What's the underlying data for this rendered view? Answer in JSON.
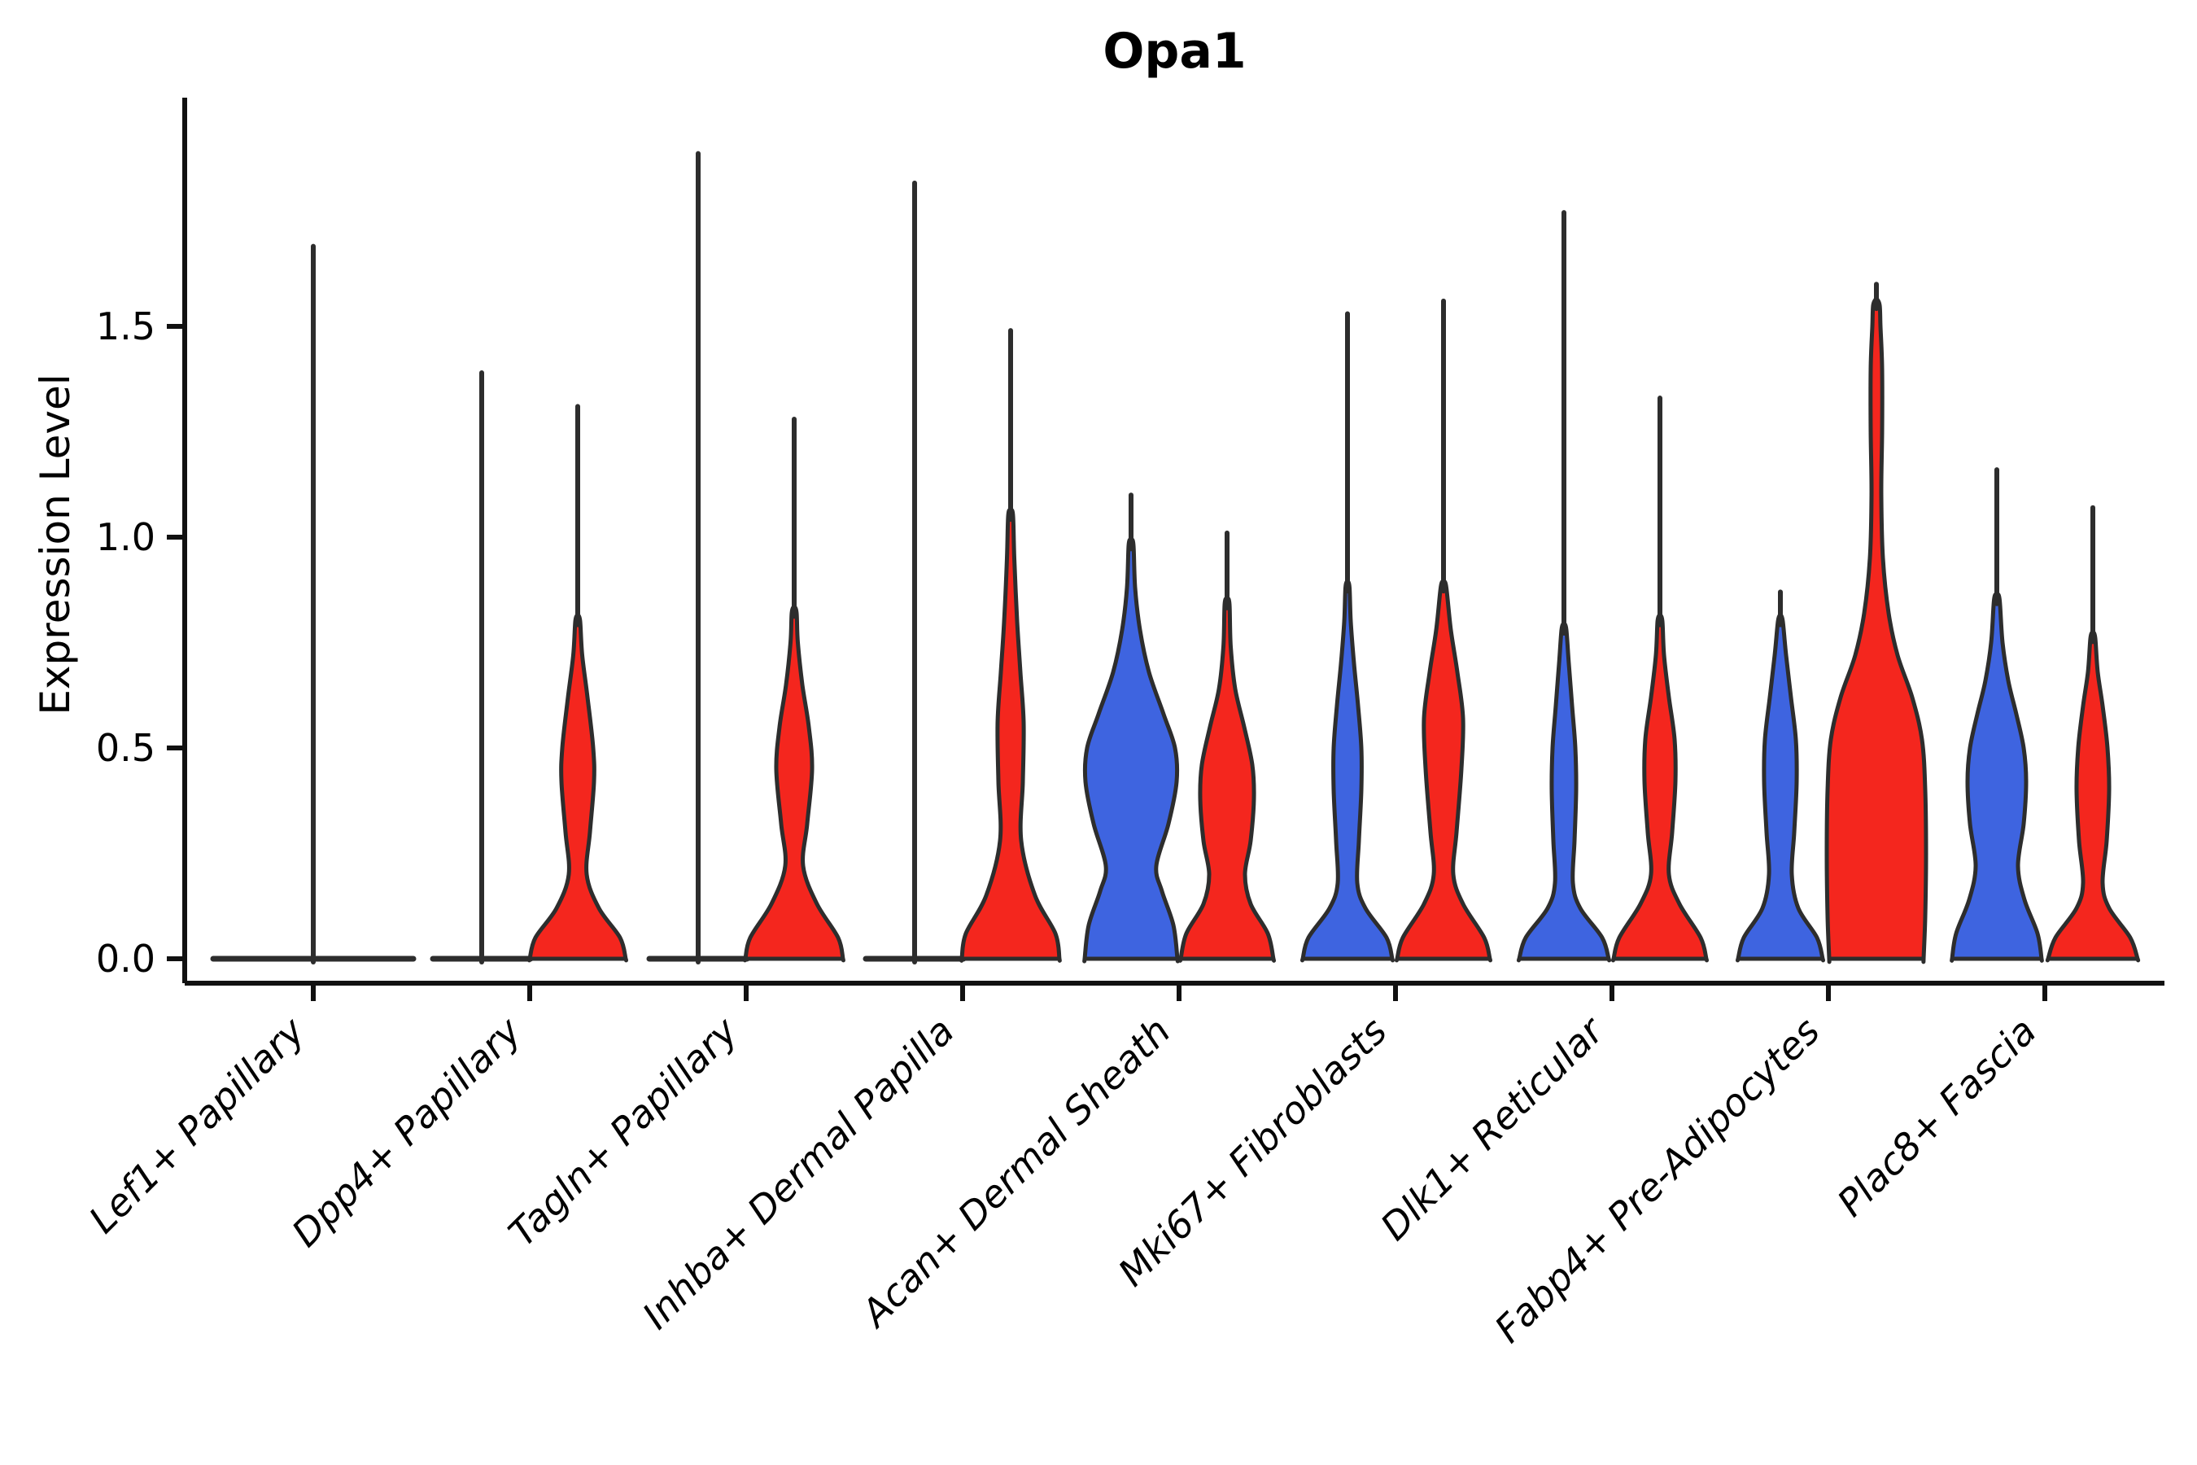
{
  "chart_data": {
    "type": "violin",
    "title": "Opa1",
    "ylabel": "Expression Level",
    "xlabel": "",
    "ytick_labels": [
      "0.0",
      "0.5",
      "1.0",
      "1.5"
    ],
    "ytick_values": [
      0.0,
      0.5,
      1.0,
      1.5
    ],
    "ylim": [
      -0.06,
      2.05
    ],
    "grid": false,
    "legend": "none",
    "series": [
      {
        "id": "left",
        "name": "group-blue",
        "color": "#3E64E0"
      },
      {
        "id": "right",
        "name": "group-red",
        "color": "#F4261E"
      },
      {
        "id": "center",
        "name": "group-single-flat",
        "color": "#3E64E0"
      }
    ],
    "outline_color": "#2D2D2D",
    "axis_color": "#111111",
    "categories": [
      "Lef1+ Papillary",
      "Dpp4+ Papillary",
      "Tagln+ Papillary",
      "Inhba+ Dermal Papilla",
      "Acan+ Dermal Sheath",
      "Mki67+ Fibroblasts",
      "Dlk1+ Reticular",
      "Fabp4+ Pre-Adipocytes",
      "Plac8+ Fascia"
    ],
    "violins": [
      {
        "category": 0,
        "side": "center",
        "flat": true,
        "half_width": 123,
        "line_max": 1.69,
        "profile": [
          [
            0,
            123
          ]
        ]
      },
      {
        "category": 1,
        "side": "left",
        "flat": true,
        "half_width": 60,
        "line_max": 1.39,
        "profile": [
          [
            0,
            60
          ]
        ]
      },
      {
        "category": 1,
        "side": "right",
        "flat": false,
        "line_max": 1.31,
        "profile": [
          [
            0,
            59
          ],
          [
            0.05,
            52
          ],
          [
            0.12,
            26
          ],
          [
            0.2,
            11
          ],
          [
            0.3,
            15
          ],
          [
            0.42,
            20
          ],
          [
            0.5,
            19
          ],
          [
            0.62,
            12
          ],
          [
            0.72,
            5.5
          ],
          [
            0.8,
            3
          ]
        ]
      },
      {
        "category": 2,
        "side": "left",
        "flat": true,
        "half_width": 60,
        "line_max": 1.91,
        "profile": [
          [
            0,
            60
          ]
        ]
      },
      {
        "category": 2,
        "side": "right",
        "flat": false,
        "line_max": 1.28,
        "profile": [
          [
            0,
            60
          ],
          [
            0.05,
            54
          ],
          [
            0.13,
            28
          ],
          [
            0.22,
            11
          ],
          [
            0.32,
            16
          ],
          [
            0.45,
            22
          ],
          [
            0.55,
            18
          ],
          [
            0.65,
            10
          ],
          [
            0.75,
            4.5
          ],
          [
            0.82,
            3
          ]
        ]
      },
      {
        "category": 3,
        "side": "left",
        "flat": true,
        "half_width": 60,
        "line_max": 1.84,
        "profile": [
          [
            0,
            60
          ]
        ]
      },
      {
        "category": 3,
        "side": "right",
        "flat": false,
        "line_max": 1.49,
        "profile": [
          [
            0,
            60
          ],
          [
            0.06,
            55
          ],
          [
            0.15,
            30
          ],
          [
            0.28,
            13
          ],
          [
            0.42,
            15
          ],
          [
            0.56,
            16
          ],
          [
            0.68,
            12
          ],
          [
            0.8,
            8
          ],
          [
            0.95,
            4.5
          ],
          [
            1.05,
            3
          ]
        ]
      },
      {
        "category": 4,
        "side": "left",
        "flat": false,
        "line_max": 1.1,
        "profile": [
          [
            0,
            57
          ],
          [
            0.08,
            52
          ],
          [
            0.16,
            38
          ],
          [
            0.22,
            31
          ],
          [
            0.32,
            46
          ],
          [
            0.42,
            56
          ],
          [
            0.5,
            54
          ],
          [
            0.58,
            40
          ],
          [
            0.68,
            22
          ],
          [
            0.78,
            11
          ],
          [
            0.88,
            5
          ],
          [
            0.98,
            3
          ]
        ]
      },
      {
        "category": 4,
        "side": "right",
        "flat": false,
        "line_max": 1.01,
        "profile": [
          [
            0,
            57
          ],
          [
            0.06,
            50
          ],
          [
            0.13,
            29
          ],
          [
            0.2,
            22
          ],
          [
            0.28,
            29
          ],
          [
            0.38,
            33
          ],
          [
            0.46,
            31
          ],
          [
            0.55,
            21
          ],
          [
            0.64,
            10
          ],
          [
            0.74,
            4.5
          ],
          [
            0.84,
            3
          ]
        ]
      },
      {
        "category": 5,
        "side": "left",
        "flat": false,
        "line_max": 1.53,
        "profile": [
          [
            0,
            55
          ],
          [
            0.05,
            48
          ],
          [
            0.12,
            22
          ],
          [
            0.18,
            12
          ],
          [
            0.28,
            14
          ],
          [
            0.4,
            17
          ],
          [
            0.5,
            17
          ],
          [
            0.6,
            13
          ],
          [
            0.7,
            8
          ],
          [
            0.8,
            4
          ],
          [
            0.88,
            2.5
          ]
        ]
      },
      {
        "category": 5,
        "side": "right",
        "flat": false,
        "line_max": 1.56,
        "profile": [
          [
            0,
            57
          ],
          [
            0.05,
            50
          ],
          [
            0.13,
            24
          ],
          [
            0.2,
            12
          ],
          [
            0.3,
            16
          ],
          [
            0.45,
            22
          ],
          [
            0.57,
            24
          ],
          [
            0.68,
            17
          ],
          [
            0.78,
            9
          ],
          [
            0.88,
            3.5
          ]
        ]
      },
      {
        "category": 6,
        "side": "left",
        "flat": false,
        "line_max": 1.77,
        "profile": [
          [
            0,
            55
          ],
          [
            0.05,
            47
          ],
          [
            0.12,
            20
          ],
          [
            0.18,
            11
          ],
          [
            0.28,
            13
          ],
          [
            0.4,
            15
          ],
          [
            0.5,
            14
          ],
          [
            0.6,
            10
          ],
          [
            0.7,
            6
          ],
          [
            0.78,
            3
          ]
        ]
      },
      {
        "category": 6,
        "side": "right",
        "flat": false,
        "line_max": 1.33,
        "profile": [
          [
            0,
            57
          ],
          [
            0.05,
            50
          ],
          [
            0.13,
            24
          ],
          [
            0.2,
            11
          ],
          [
            0.3,
            15
          ],
          [
            0.42,
            19
          ],
          [
            0.52,
            18
          ],
          [
            0.62,
            11
          ],
          [
            0.72,
            5
          ],
          [
            0.8,
            3
          ]
        ]
      },
      {
        "category": 7,
        "side": "left",
        "flat": false,
        "line_max": 0.87,
        "profile": [
          [
            0,
            52
          ],
          [
            0.05,
            45
          ],
          [
            0.12,
            22
          ],
          [
            0.2,
            14
          ],
          [
            0.3,
            17
          ],
          [
            0.42,
            20
          ],
          [
            0.52,
            19
          ],
          [
            0.62,
            13
          ],
          [
            0.72,
            7
          ],
          [
            0.8,
            3
          ]
        ]
      },
      {
        "category": 7,
        "side": "right",
        "flat": false,
        "line_max": 1.6,
        "profile": [
          [
            0,
            58
          ],
          [
            0.1,
            60
          ],
          [
            0.25,
            61
          ],
          [
            0.4,
            60
          ],
          [
            0.52,
            56
          ],
          [
            0.62,
            44
          ],
          [
            0.72,
            26
          ],
          [
            0.82,
            15
          ],
          [
            0.95,
            8
          ],
          [
            1.1,
            6
          ],
          [
            1.25,
            7
          ],
          [
            1.4,
            7
          ],
          [
            1.5,
            5
          ],
          [
            1.55,
            4
          ]
        ]
      },
      {
        "category": 8,
        "side": "left",
        "flat": false,
        "line_max": 1.16,
        "profile": [
          [
            0,
            55
          ],
          [
            0.06,
            50
          ],
          [
            0.14,
            34
          ],
          [
            0.22,
            26
          ],
          [
            0.32,
            33
          ],
          [
            0.42,
            36
          ],
          [
            0.5,
            33
          ],
          [
            0.58,
            24
          ],
          [
            0.66,
            14
          ],
          [
            0.75,
            7
          ],
          [
            0.85,
            3.5
          ]
        ]
      },
      {
        "category": 8,
        "side": "right",
        "flat": false,
        "line_max": 1.07,
        "profile": [
          [
            0,
            55
          ],
          [
            0.05,
            46
          ],
          [
            0.12,
            20
          ],
          [
            0.18,
            12
          ],
          [
            0.28,
            17
          ],
          [
            0.4,
            20
          ],
          [
            0.5,
            18
          ],
          [
            0.6,
            12
          ],
          [
            0.68,
            6
          ],
          [
            0.76,
            3
          ]
        ]
      }
    ]
  }
}
